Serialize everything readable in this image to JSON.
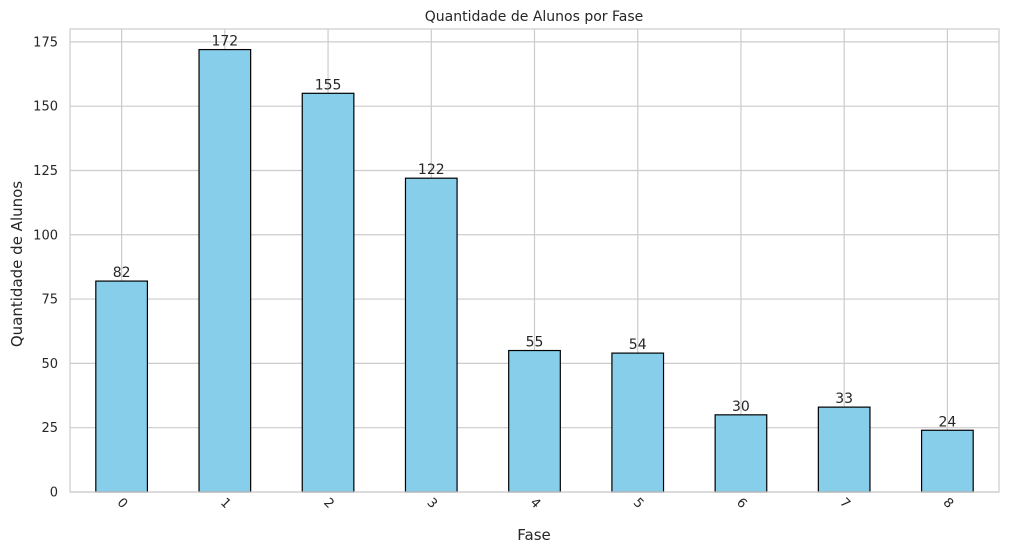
{
  "chart_data": {
    "type": "bar",
    "title": "Quantidade de Alunos por Fase",
    "xlabel": "Fase",
    "ylabel": "Quantidade de Alunos",
    "categories": [
      "0",
      "1",
      "2",
      "3",
      "4",
      "5",
      "6",
      "7",
      "8"
    ],
    "values": [
      82,
      172,
      155,
      122,
      55,
      54,
      30,
      33,
      24
    ],
    "data_labels": [
      "82",
      "172",
      "155",
      "122",
      "55",
      "54",
      "30",
      "33",
      "24"
    ],
    "ylim": [
      0,
      180
    ],
    "yticks": [
      0,
      25,
      50,
      75,
      100,
      125,
      150,
      175
    ],
    "ytick_labels": [
      "0",
      "25",
      "50",
      "75",
      "100",
      "125",
      "150",
      "175"
    ],
    "xtick_rotation_deg": 45,
    "grid": true,
    "colors": {
      "bar_fill": "#87ceeb",
      "bar_edge": "#000000",
      "grid": "#cccccc"
    }
  }
}
